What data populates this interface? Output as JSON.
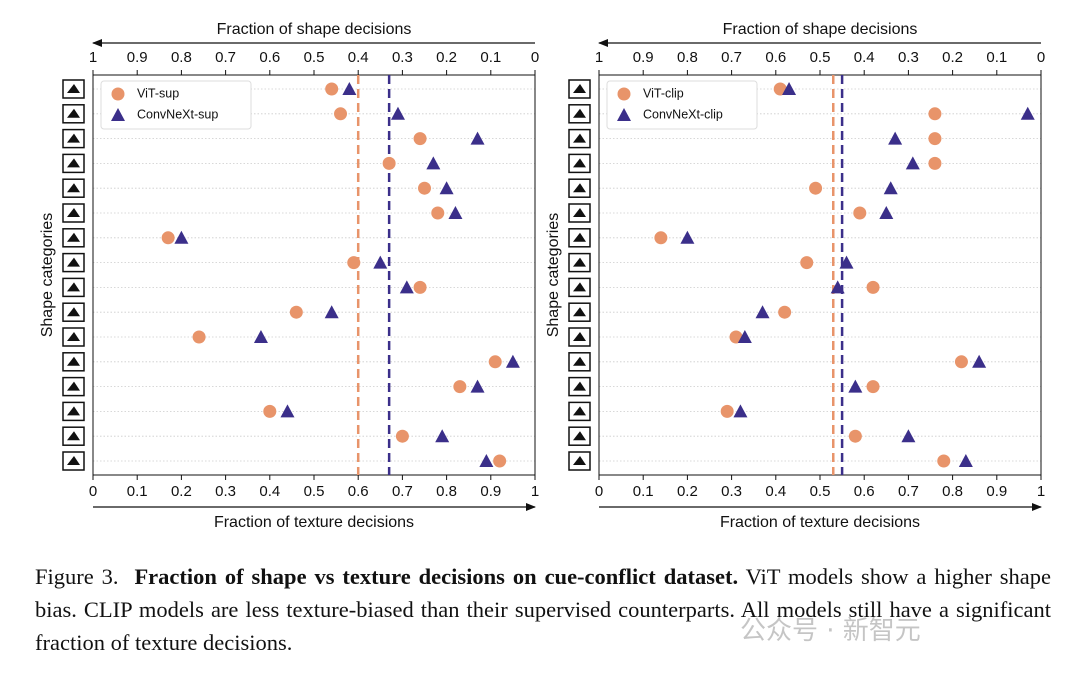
{
  "chart_data": [
    {
      "type": "scatter",
      "xlabel": "Fraction of texture decisions",
      "x2label": "Fraction of shape decisions",
      "ylabel": "Shape categories",
      "categories": [
        null,
        null,
        null,
        null,
        null,
        null,
        null,
        null,
        null,
        null,
        null,
        null,
        null,
        null,
        null,
        null
      ],
      "xlim": [
        0,
        1
      ],
      "xticks": [
        0,
        0.1,
        0.2,
        0.3,
        0.4,
        0.5,
        0.6,
        0.7,
        0.8,
        0.9,
        1
      ],
      "x2lim": [
        1,
        0
      ],
      "x2ticks": [
        1,
        0.9,
        0.8,
        0.7,
        0.6,
        0.5,
        0.4,
        0.3,
        0.2,
        0.1,
        0
      ],
      "series": [
        {
          "name": "ViT-sup",
          "color": "#e8946a",
          "marker": "circle",
          "values": [
            0.54,
            0.56,
            0.74,
            0.67,
            0.75,
            0.78,
            0.17,
            0.59,
            0.74,
            0.46,
            0.24,
            0.91,
            0.83,
            0.4,
            0.7,
            0.92
          ]
        },
        {
          "name": "ConvNeXt-sup",
          "color": "#3b2f8a",
          "marker": "triangle",
          "values": [
            0.58,
            0.69,
            0.87,
            0.77,
            0.8,
            0.82,
            0.2,
            0.65,
            0.71,
            0.54,
            0.38,
            0.95,
            0.87,
            0.44,
            0.79,
            0.89
          ]
        }
      ],
      "reference_lines": [
        {
          "color": "#e8946a",
          "value": 0.6
        },
        {
          "color": "#3b2f8a",
          "value": 0.67
        }
      ],
      "legend": "upper left",
      "grid": true
    },
    {
      "type": "scatter",
      "xlabel": "Fraction of texture decisions",
      "x2label": "Fraction of shape decisions",
      "ylabel": "Shape categories",
      "categories": [
        null,
        null,
        null,
        null,
        null,
        null,
        null,
        null,
        null,
        null,
        null,
        null,
        null,
        null,
        null,
        null
      ],
      "xlim": [
        0,
        1
      ],
      "xticks": [
        0,
        0.1,
        0.2,
        0.3,
        0.4,
        0.5,
        0.6,
        0.7,
        0.8,
        0.9,
        1
      ],
      "x2lim": [
        1,
        0
      ],
      "x2ticks": [
        1,
        0.9,
        0.8,
        0.7,
        0.6,
        0.5,
        0.4,
        0.3,
        0.2,
        0.1,
        0
      ],
      "series": [
        {
          "name": "ViT-clip",
          "color": "#e8946a",
          "marker": "circle",
          "values": [
            0.41,
            0.76,
            0.76,
            0.76,
            0.49,
            0.59,
            0.14,
            0.47,
            0.62,
            0.42,
            0.31,
            0.82,
            0.62,
            0.29,
            0.58,
            0.78
          ]
        },
        {
          "name": "ConvNeXt-clip",
          "color": "#3b2f8a",
          "marker": "triangle",
          "values": [
            0.43,
            0.97,
            0.67,
            0.71,
            0.66,
            0.65,
            0.2,
            0.56,
            0.54,
            0.37,
            0.33,
            0.86,
            0.58,
            0.32,
            0.7,
            0.83
          ]
        }
      ],
      "reference_lines": [
        {
          "color": "#e8946a",
          "value": 0.53
        },
        {
          "color": "#3b2f8a",
          "value": 0.55
        }
      ],
      "legend": "upper left",
      "grid": true
    }
  ],
  "caption": {
    "label": "Figure 3.",
    "bold": "Fraction of shape vs texture decisions on cue-conflict dataset.",
    "text": "ViT models show a higher shape bias. CLIP models are less texture-biased than their supervised counterparts. All models still have a significant fraction of texture decisions."
  },
  "watermark": "公众号 · 新智元"
}
